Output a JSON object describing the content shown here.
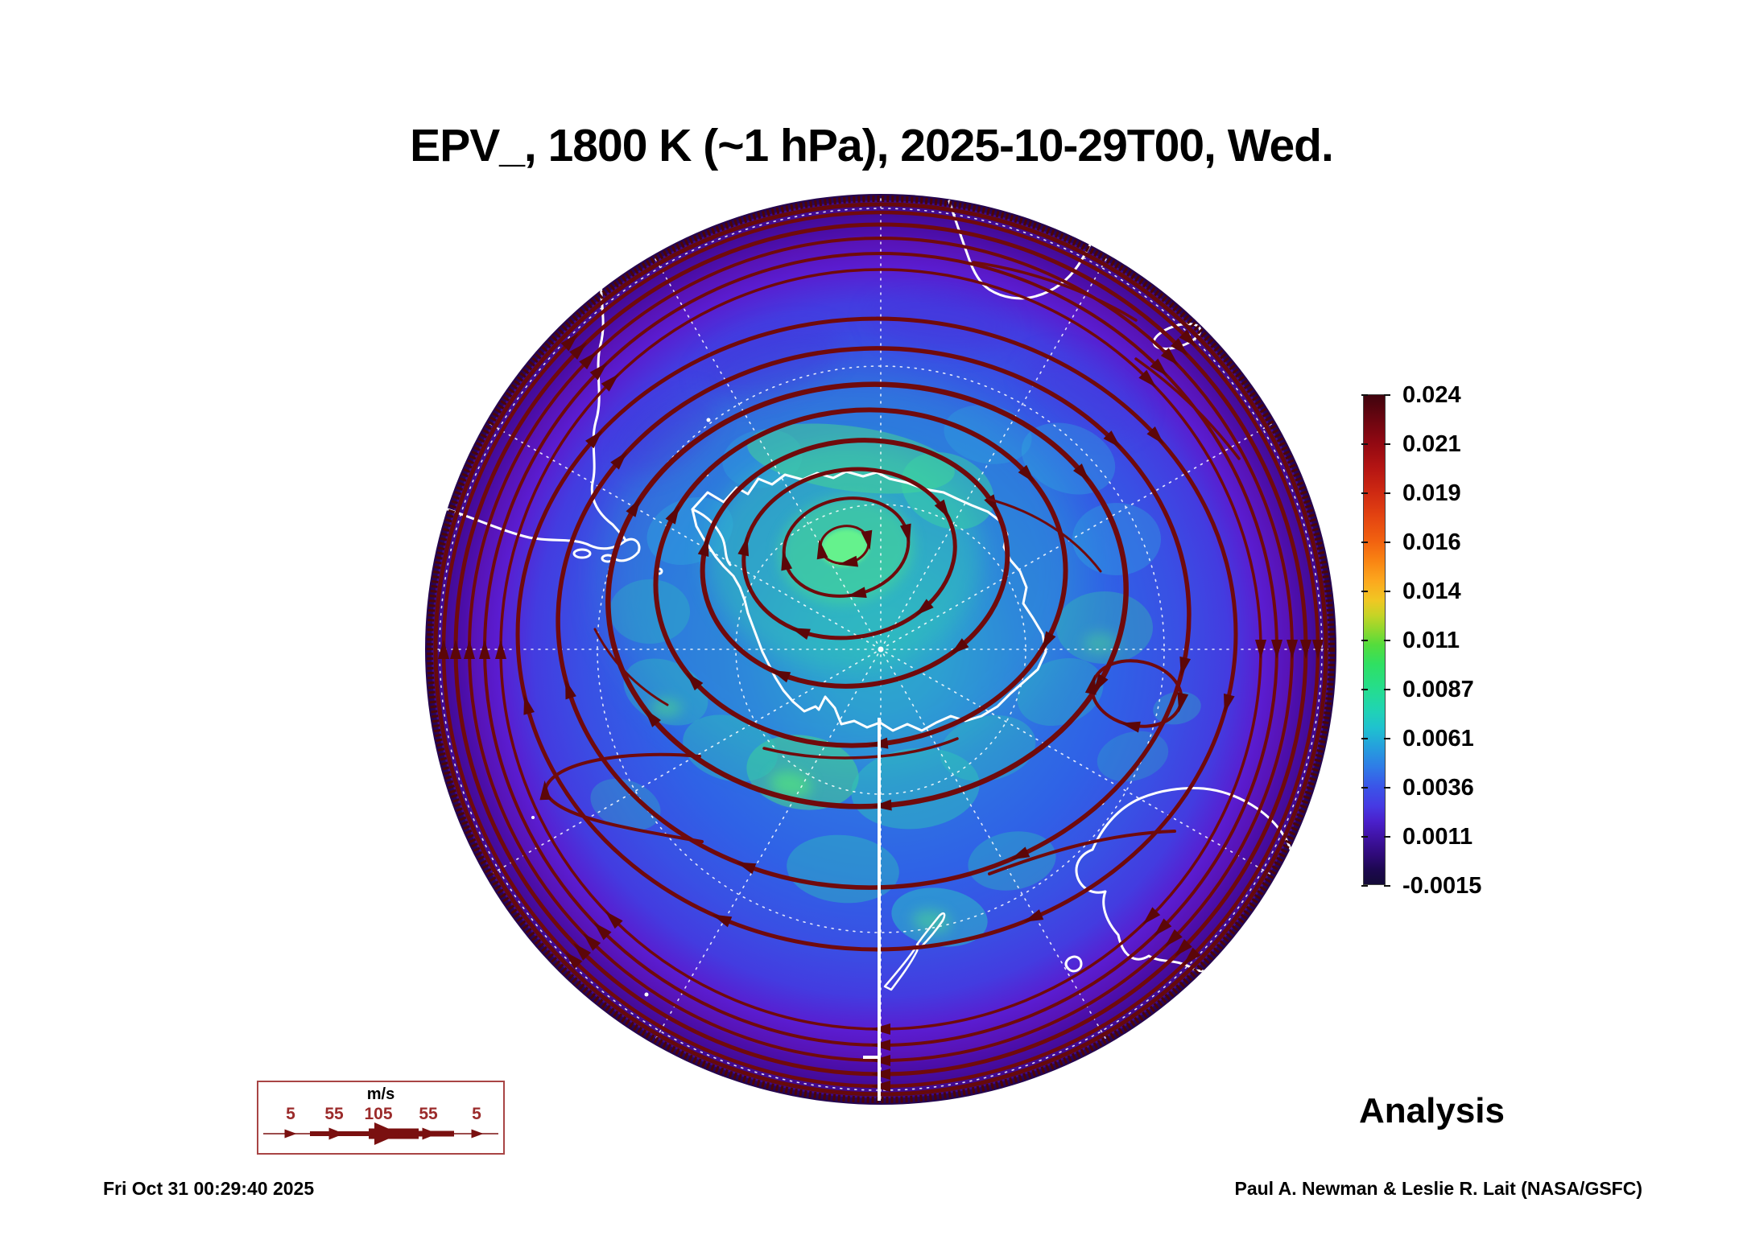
{
  "chart_data": {
    "type": "heatmap",
    "title": "EPV_, 1800 K (~1 hPa), 2025-10-29T00, Wed.",
    "projection": "south-polar-stereographic",
    "field": "Ertel potential vorticity with wind streamlines",
    "colorbar": {
      "max": 0.024,
      "min": -0.0015,
      "ticks": [
        "0.024",
        "0.021",
        "0.019",
        "0.016",
        "0.014",
        "0.011",
        "0.0087",
        "0.0061",
        "0.0036",
        "0.0011",
        "-0.0015"
      ],
      "gradient": [
        [
          0,
          "#40040d"
        ],
        [
          5,
          "#6b0510"
        ],
        [
          10,
          "#930912"
        ],
        [
          15,
          "#b51513"
        ],
        [
          20,
          "#cf2a12"
        ],
        [
          25,
          "#e44511"
        ],
        [
          30,
          "#f26310"
        ],
        [
          34,
          "#f98513"
        ],
        [
          38,
          "#fca81e"
        ],
        [
          42,
          "#f0c723"
        ],
        [
          45,
          "#c6d426"
        ],
        [
          48,
          "#8fd82e"
        ],
        [
          51,
          "#55dc3c"
        ],
        [
          55,
          "#2fe062"
        ],
        [
          60,
          "#25dd8d"
        ],
        [
          64,
          "#20d5b0"
        ],
        [
          68,
          "#1fc2cf"
        ],
        [
          72,
          "#259fdd"
        ],
        [
          76,
          "#2f7ce7"
        ],
        [
          80,
          "#3a55e8"
        ],
        [
          84,
          "#463ae3"
        ],
        [
          87,
          "#4a21cd"
        ],
        [
          90,
          "#4114a8"
        ],
        [
          94,
          "#2f0a79"
        ],
        [
          97,
          "#1d0850"
        ],
        [
          100,
          "#140a38"
        ]
      ]
    },
    "wind_legend": {
      "units_label": "m/s",
      "speed_ticks": [
        "5",
        "55",
        "105",
        "55",
        "5"
      ]
    },
    "annotations": {
      "analysis_label": "Analysis",
      "timestamp": "Fri Oct 31 00:29:40 2025",
      "credit": "Paul A. Newman & Leslie R. Lait (NASA/GSFC)"
    },
    "colors": {
      "streamline": "#700a0c",
      "streamline_dark": "#5c0608",
      "coastline": "#ffffff",
      "graticule": "#ffffff",
      "field_interior": "#2f62e6",
      "vortex_core": "#68f58c",
      "subtropical_band": "#4b0fae",
      "edge_dark": "#23044a"
    }
  }
}
